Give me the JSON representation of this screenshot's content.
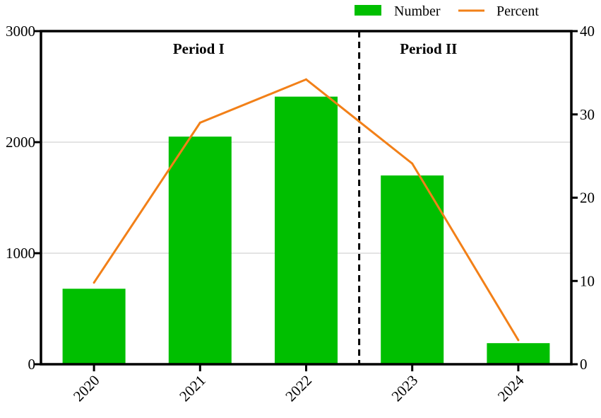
{
  "chart_data": {
    "type": "bar",
    "categories": [
      "2020",
      "2021",
      "2022",
      "2023",
      "2024"
    ],
    "series": [
      {
        "name": "Number",
        "type": "bar",
        "axis": "left",
        "color": "#00bf00",
        "values": [
          680,
          2050,
          2410,
          1700,
          190
        ]
      },
      {
        "name": "Percent",
        "type": "line",
        "axis": "right",
        "color": "#f28018",
        "values": [
          9.8,
          29,
          34.2,
          24.1,
          2.9
        ]
      }
    ],
    "y_left": {
      "ylim": [
        0,
        3000
      ],
      "ticks": [
        0,
        1000,
        2000,
        3000
      ],
      "tick_labels": [
        "0",
        "1000",
        "2000",
        "3000"
      ]
    },
    "y_right": {
      "ylim": [
        0,
        40
      ],
      "ticks": [
        0,
        10,
        20,
        30,
        40
      ],
      "tick_labels": [
        "0",
        "10",
        "20",
        "30",
        "40"
      ]
    },
    "grid": "horizontal at left-axis major ticks",
    "legend": {
      "placement": "top-right, above plot",
      "entries": [
        {
          "label": "Number"
        },
        {
          "label": "Percent"
        }
      ]
    },
    "x_tick_rotation": "45 degrees",
    "divider": {
      "style": "dashed vertical line",
      "between": [
        "2022",
        "2023"
      ]
    },
    "annotations": [
      {
        "text": "Period I",
        "over": "2020-2022"
      },
      {
        "text": "Period II",
        "over": "2023-2024"
      }
    ]
  }
}
